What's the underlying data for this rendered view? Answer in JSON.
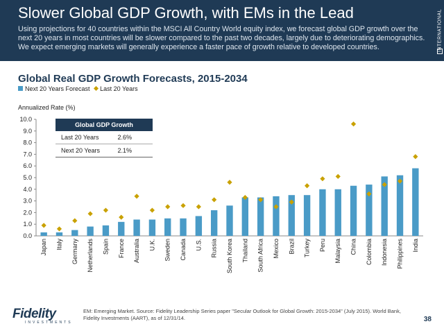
{
  "header": {
    "title": "Slower Global GDP Growth, with EMs in the Lead",
    "description": "Using projections for 40 countries within the MSCI All Country World equity index, we forecast global GDP growth over the next 20 years in most countries will be slower compared to the past two decades, largely due to deteriorating demographics. We expect emerging markets will generally experience a faster pace of growth relative to developed countries.",
    "side_label": "INTERNATIONAL"
  },
  "chart_data": {
    "type": "bar",
    "title": "Global Real GDP Growth Forecasts, 2015-2034",
    "ylabel": "Annualized Rate (%)",
    "xlabel": "",
    "ylim": [
      0,
      10
    ],
    "yticks": [
      "0.0",
      "1.0",
      "2.0",
      "3.0",
      "4.0",
      "5.0",
      "6.0",
      "7.0",
      "8.0",
      "9.0",
      "10.0"
    ],
    "legend_position": "top-left",
    "grid": false,
    "categories": [
      "Japan",
      "Italy",
      "Germany",
      "Netherlands",
      "Spain",
      "France",
      "Australia",
      "U.K.",
      "Sweden",
      "Canada",
      "U.S.",
      "Russia",
      "South Korea",
      "Thailand",
      "South Africa",
      "Mexico",
      "Brazil",
      "Turkey",
      "Peru",
      "Malaysia",
      "China",
      "Colombia",
      "Indonesia",
      "Philippines",
      "India"
    ],
    "series": [
      {
        "name": "Next 20 Years Forecast",
        "marker": "bar",
        "color": "#4a9bc7",
        "values": [
          0.3,
          0.3,
          0.5,
          0.8,
          0.9,
          1.2,
          1.4,
          1.4,
          1.5,
          1.5,
          1.7,
          2.2,
          2.6,
          3.3,
          3.3,
          3.4,
          3.5,
          3.5,
          4.0,
          4.0,
          4.3,
          4.4,
          5.1,
          5.2,
          5.8
        ]
      },
      {
        "name": "Last 20 Years",
        "marker": "diamond",
        "color": "#c9a100",
        "values": [
          0.9,
          0.6,
          1.3,
          1.9,
          2.2,
          1.6,
          3.4,
          2.2,
          2.5,
          2.6,
          2.5,
          3.1,
          4.6,
          3.3,
          3.1,
          2.5,
          2.9,
          4.3,
          4.9,
          5.1,
          9.6,
          3.6,
          4.4,
          4.7,
          6.8
        ]
      }
    ]
  },
  "gdp_box": {
    "title": "Global GDP Growth",
    "rows": [
      {
        "label": "Last 20 Years",
        "value": "2.6%"
      },
      {
        "label": "Next 20 Years",
        "value": "2.1%"
      }
    ]
  },
  "footer": {
    "logo_text": "Fidelity",
    "logo_sub": "INVESTMENTS",
    "footnote": "EM: Emerging Market. Source: Fidelity Leadership Series paper \"Secular Outlook for Global Growth: 2015-2034\" (July 2015). World Bank, Fidelity Investments (AART), as of 12/31/14.",
    "page_number": "38"
  }
}
